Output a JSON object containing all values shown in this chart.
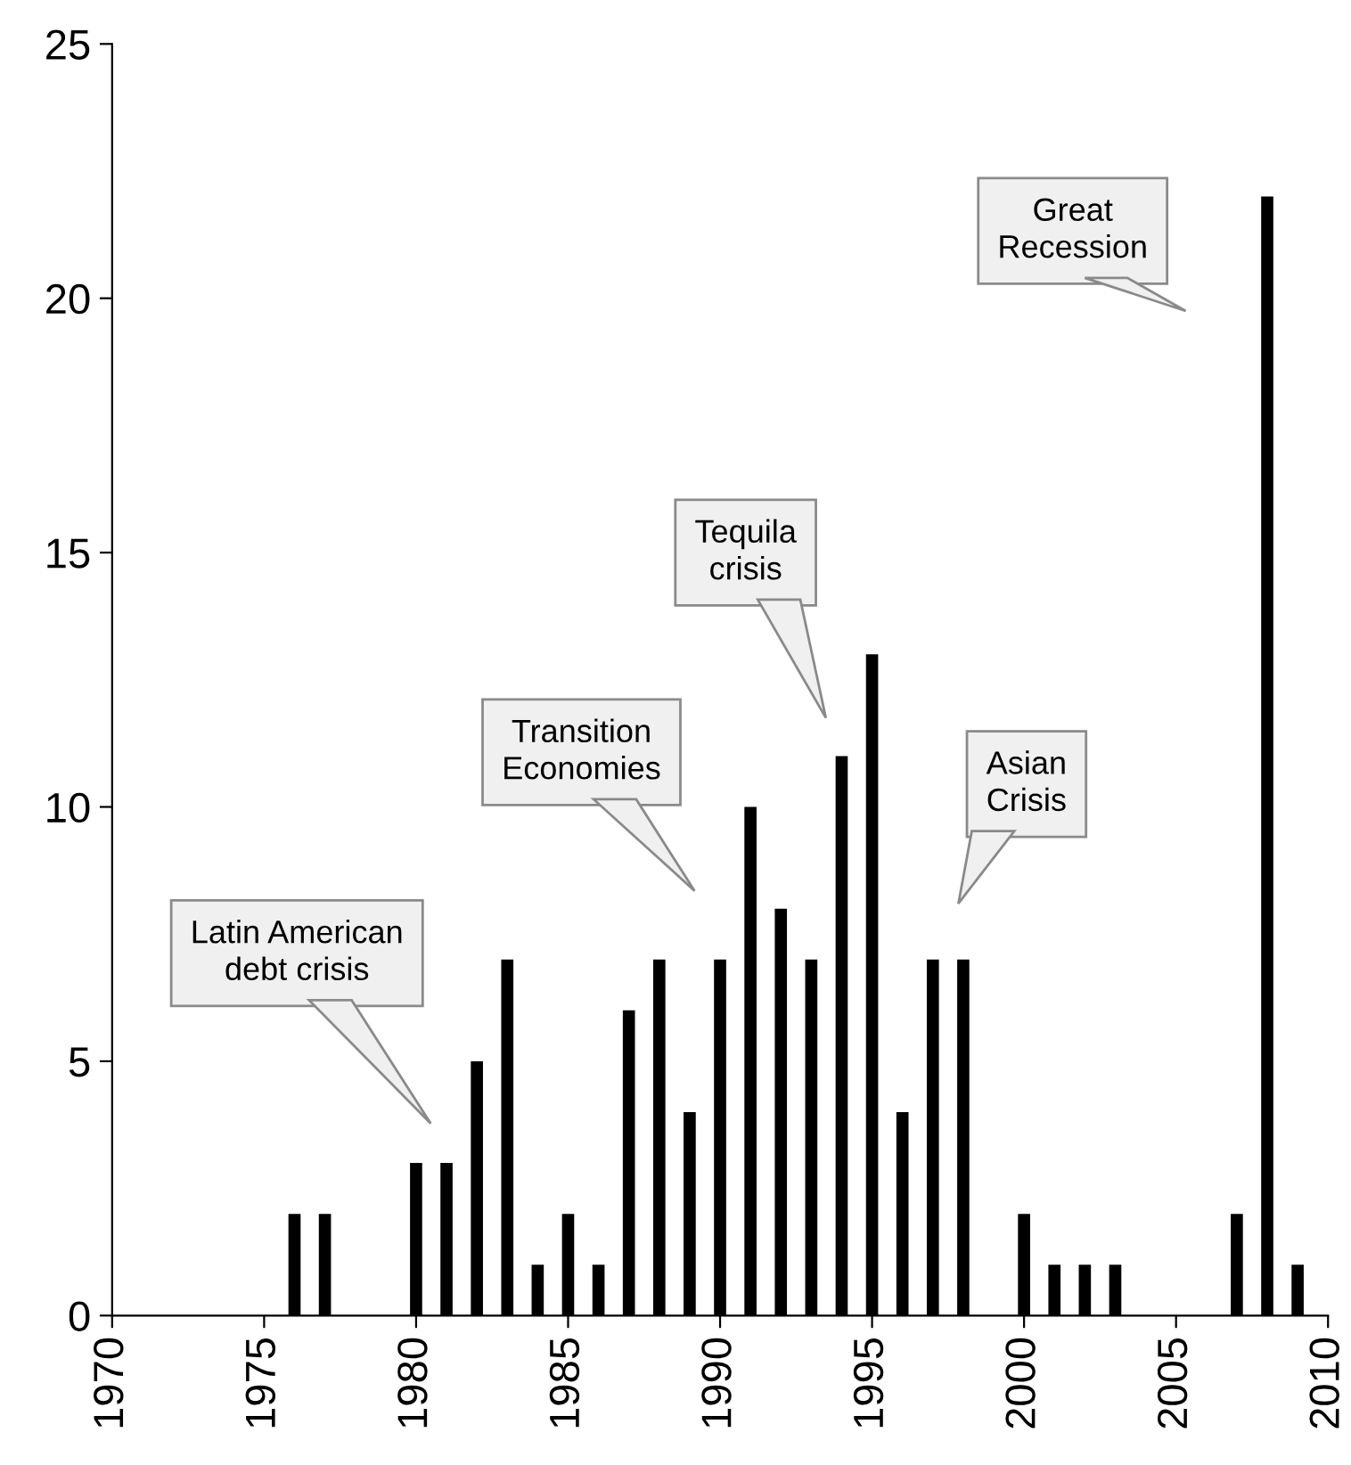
{
  "chart_data": {
    "type": "bar",
    "x": [
      1976,
      1977,
      1980,
      1981,
      1982,
      1983,
      1984,
      1985,
      1986,
      1987,
      1988,
      1989,
      1990,
      1991,
      1992,
      1993,
      1994,
      1995,
      1996,
      1997,
      1998,
      2000,
      2001,
      2002,
      2003,
      2007,
      2008,
      2009
    ],
    "values": [
      2,
      2,
      3,
      3,
      5,
      7,
      1,
      2,
      1,
      6,
      7,
      4,
      7,
      10,
      8,
      7,
      11,
      13,
      4,
      7,
      7,
      2,
      1,
      1,
      1,
      2,
      22,
      1
    ],
    "color": "#000000",
    "xlim": [
      1970,
      2010
    ],
    "xticks": [
      1970,
      1975,
      1980,
      1985,
      1990,
      1995,
      2000,
      2005,
      2010
    ],
    "ylim": [
      0,
      25
    ],
    "yticks": [
      0,
      5,
      10,
      15,
      20,
      25
    ],
    "grid": false,
    "annotations": [
      "Latin American\ndebt crisis",
      "Transition\nEconomies",
      "Tequila\ncrisis",
      "Asian\nCrisis",
      "Great\nRecession"
    ]
  }
}
